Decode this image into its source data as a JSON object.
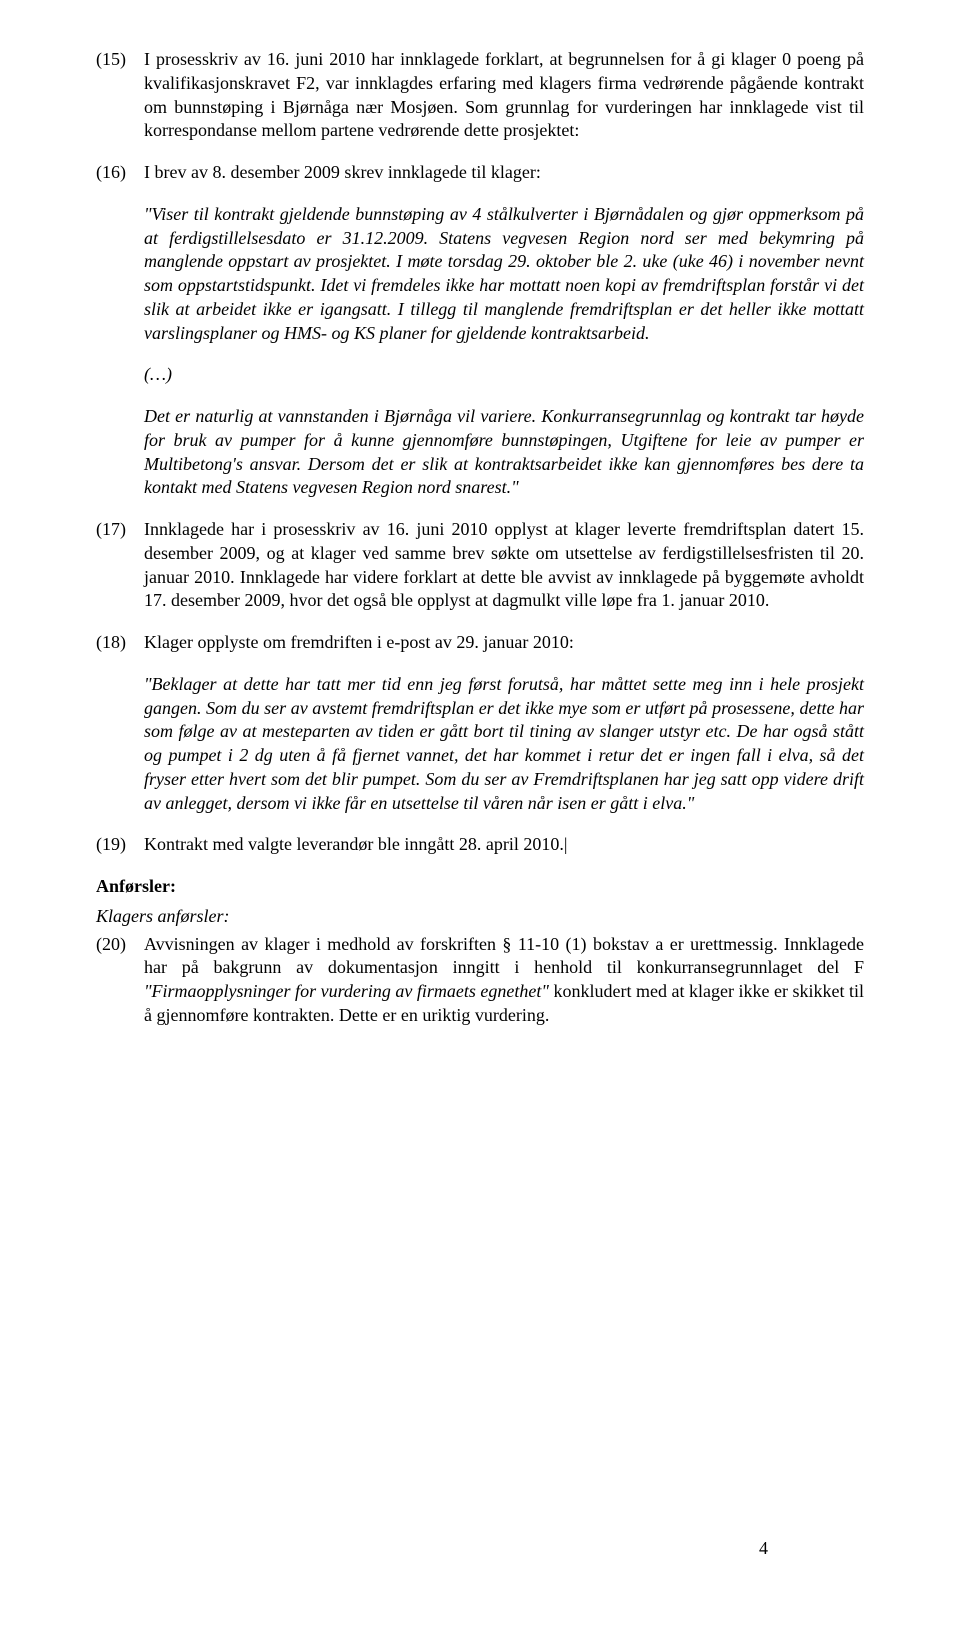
{
  "items": {
    "i15": {
      "num": "(15)",
      "text": "I prosesskriv av 16. juni 2010 har innklagede forklart, at begrunnelsen for å gi klager 0 poeng på kvalifikasjonskravet F2, var innklagdes erfaring med klagers firma vedrørende pågående kontrakt om bunnstøping i Bjørnåga nær Mosjøen. Som grunnlag for vurderingen har innklagede vist til korrespondanse mellom partene vedrørende dette prosjektet:"
    },
    "i16": {
      "num": "(16)",
      "text": "I brev av 8. desember 2009 skrev innklagede til klager:"
    },
    "i17": {
      "num": "(17)",
      "text": "Innklagede har i prosesskriv av 16. juni 2010 opplyst at klager leverte fremdriftsplan datert 15. desember 2009, og at klager ved samme brev søkte om utsettelse av ferdigstillelsesfristen til 20. januar 2010. Innklagede har videre forklart at dette ble avvist av innklagede på byggemøte avholdt 17. desember 2009, hvor det også ble opplyst at dagmulkt ville løpe fra 1. januar 2010."
    },
    "i18": {
      "num": "(18)",
      "text": "Klager opplyste om fremdriften i e-post av 29. januar 2010:"
    },
    "i19": {
      "num": "(19)",
      "text": "Kontrakt med valgte leverandør ble inngått 28. april 2010.|"
    },
    "i20": {
      "num": "(20)",
      "text_before": "Avvisningen av klager i medhold av forskriften § 11-10 (1) bokstav a er urettmessig. Innklagede har på bakgrunn av dokumentasjon inngitt i henhold til konkurransegrunnlaget del F ",
      "text_italic": "\"Firmaopplysninger for vurdering av firmaets egnethet\"",
      "text_after": " konkludert med at klager ikke er skikket til å gjennomføre kontrakten. Dette er en uriktig vurdering."
    }
  },
  "quotes": {
    "q16a": "\"Viser til kontrakt gjeldende bunnstøping av 4 stålkulverter i Bjørnådalen og gjør oppmerksom på at ferdigstillelsesdato er 31.12.2009. Statens vegvesen Region nord ser med bekymring på manglende oppstart av prosjektet. I møte torsdag 29. oktober ble 2. uke (uke 46) i november nevnt som oppstartstidspunkt. Idet vi fremdeles ikke har mottatt noen kopi av fremdriftsplan forstår vi det slik at arbeidet ikke er igangsatt. I tillegg til manglende fremdriftsplan er det heller ikke mottatt varslingsplaner og HMS- og KS planer for gjeldende kontraktsarbeid.",
    "q16b": "(…)",
    "q16c": "Det er naturlig at vannstanden i Bjørnåga vil variere. Konkurransegrunnlag og kontrakt tar høyde for bruk av pumper for å kunne gjennomføre bunnstøpingen, Utgiftene for leie av pumper er Multibetong's ansvar. Dersom det er slik at kontraktsarbeidet ikke kan gjennomføres bes dere ta kontakt med Statens vegvesen Region nord snarest.\"",
    "q18": "\"Beklager at dette har tatt mer tid enn jeg først forutså, har måttet sette meg inn i hele prosjekt gangen. Som du ser av avstemt fremdriftsplan er det ikke mye som er utført på prosessene, dette har som følge av at mesteparten av tiden er gått bort til tining av slanger utstyr etc. De har også stått og pumpet i 2 dg uten å få fjernet vannet, det har kommet i retur det er ingen fall i elva, så det fryser etter hvert som det blir pumpet. Som du ser av Fremdriftsplanen har jeg satt opp videre drift av anlegget, dersom vi ikke får en utsettelse til våren når isen er gått i elva.\""
  },
  "headings": {
    "anforsler": "Anførsler:",
    "klagers": "Klagers anførsler:"
  },
  "page_number": "4"
}
